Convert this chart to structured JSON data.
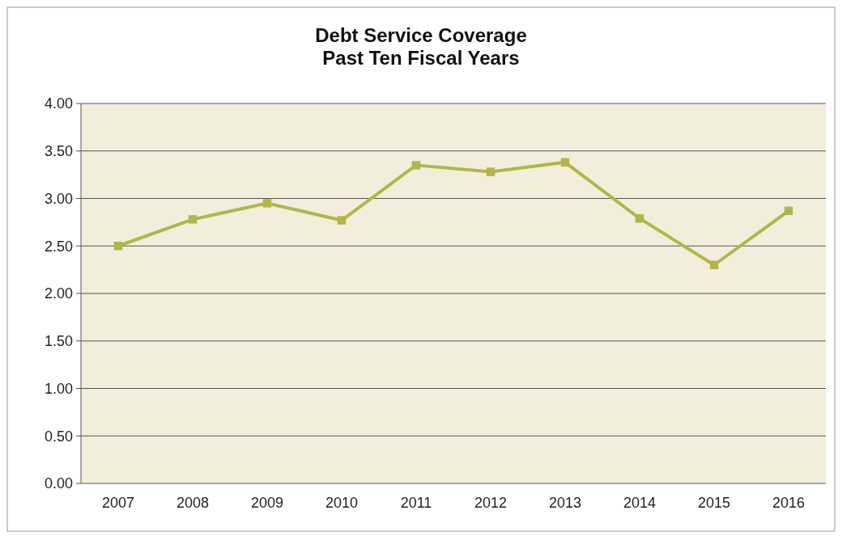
{
  "chart_data": {
    "type": "line",
    "title": "Debt Service Coverage\nPast Ten Fiscal Years",
    "categories": [
      "2007",
      "2008",
      "2009",
      "2010",
      "2011",
      "2012",
      "2013",
      "2014",
      "2015",
      "2016"
    ],
    "series": [
      {
        "color": "#b3b54a",
        "values": [
          2.5,
          2.78,
          2.95,
          2.77,
          3.35,
          3.28,
          3.38,
          2.79,
          2.3,
          2.87
        ]
      }
    ],
    "ylim": [
      0,
      4
    ],
    "yticks": [
      {
        "value": 0,
        "label": "0.00"
      },
      {
        "value": 0.5,
        "label": "0.50"
      },
      {
        "value": 1,
        "label": "1.00"
      },
      {
        "value": 1.5,
        "label": "1.50"
      },
      {
        "value": 2,
        "label": "2.00"
      },
      {
        "value": 2.5,
        "label": "2.50"
      },
      {
        "value": 3,
        "label": "3.00"
      },
      {
        "value": 3.5,
        "label": "3.50"
      },
      {
        "value": 4,
        "label": "4.00"
      }
    ],
    "grid": "y",
    "marker": "square",
    "line_style": "solid"
  }
}
